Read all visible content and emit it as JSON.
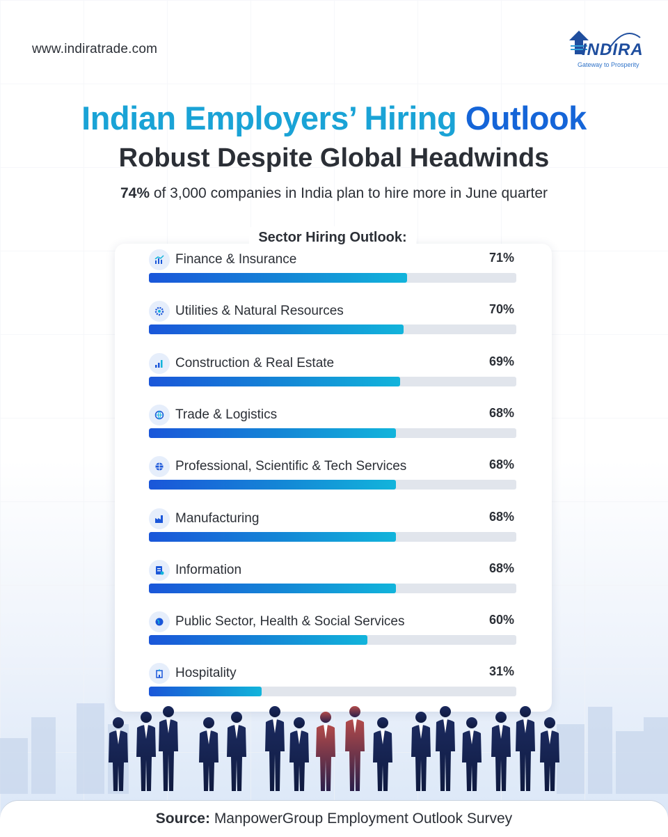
{
  "site_url": "www.indiratrade.com",
  "logo": {
    "word": "INDIRA",
    "tagline": "Gateway to Prosperity",
    "accent": "#1f4e9e"
  },
  "title": {
    "part1": "Indian Employers’ Hiring",
    "part2": "Outlook"
  },
  "subtitle": "Robust Despite Global Headwinds",
  "lead": {
    "highlight": "74%",
    "rest": " of 3,000 companies in India plan to hire more in June quarter"
  },
  "chart_data": {
    "type": "bar",
    "title": "Sector Hiring Outlook:",
    "unit": "%",
    "ylim": [
      0,
      100
    ],
    "categories": [
      "Finance & Insurance",
      "Utilities & Natural Resources",
      "Construction & Real Estate",
      "Trade & Logistics",
      "Professional, Scientific & Tech Services",
      "Manufacturing",
      "Information",
      "Public Sector, Health & Social Services",
      "Hospitality"
    ],
    "values": [
      71,
      70,
      69,
      68,
      68,
      68,
      68,
      60,
      31
    ],
    "value_labels": [
      "71%",
      "70%",
      "69%",
      "68%",
      "68%",
      "68%",
      "68%",
      "60%",
      "31%"
    ],
    "icons": [
      "finance-icon",
      "gear-icon",
      "building-chart-icon",
      "globe-logistics-icon",
      "tech-globe-icon",
      "factory-icon",
      "document-icon",
      "globe-icon",
      "hotel-icon"
    ],
    "bar_gradient": [
      "#1a56d9",
      "#12b4db"
    ],
    "track_color": "#e1e5ec"
  },
  "footer": {
    "label": "Source:",
    "text": " ManpowerGroup Employment Outlook Survey"
  }
}
